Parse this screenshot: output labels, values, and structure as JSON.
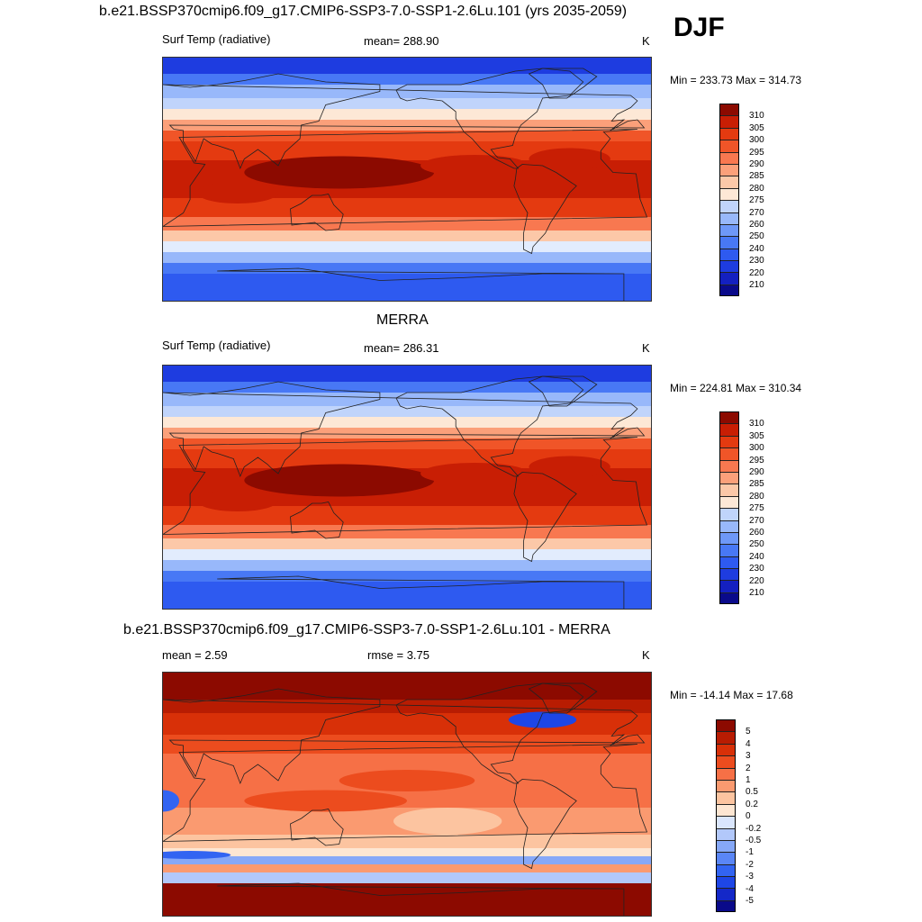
{
  "season": "DJF",
  "colors": {
    "temp": [
      "#0a0a8a",
      "#1420c0",
      "#1e3ce0",
      "#2e5af0",
      "#4878f5",
      "#6e98f8",
      "#98b8fa",
      "#c0d4fb",
      "#e2ecfd",
      "#fde8d6",
      "#fcc8a8",
      "#fba07a",
      "#f87850",
      "#f05528",
      "#e43a10",
      "#c81e04",
      "#8c0a00"
    ],
    "diff": [
      "#0a0a8a",
      "#1428c8",
      "#1e46e6",
      "#3264f2",
      "#5a86f6",
      "#86a8f8",
      "#b2c8fa",
      "#dae6fd",
      "#fde6d2",
      "#fcc4a0",
      "#fa9a70",
      "#f67046",
      "#ec4c1e",
      "#d83008",
      "#b81c02",
      "#8c0a00"
    ]
  },
  "panels": [
    {
      "title": "b.e21.BSSP370cmip6.f09_g17.CMIP6-SSP3-7.0-SSP1-2.6Lu.101 (yrs 2035-2059)",
      "left_label": "Surf Temp (radiative)",
      "center_label": "mean= 288.90",
      "units": "K",
      "minmax": "Min = 233.73 Max = 314.73",
      "colorbar_ticks": [
        "310",
        "305",
        "300",
        "295",
        "290",
        "285",
        "280",
        "275",
        "270",
        "260",
        "250",
        "240",
        "230",
        "220",
        "210"
      ]
    },
    {
      "title": "MERRA",
      "left_label": "Surf Temp (radiative)",
      "center_label": "mean= 286.31",
      "units": "K",
      "minmax": "Min = 224.81 Max = 310.34",
      "colorbar_ticks": [
        "310",
        "305",
        "300",
        "295",
        "290",
        "285",
        "280",
        "275",
        "270",
        "260",
        "250",
        "240",
        "230",
        "220",
        "210"
      ]
    },
    {
      "title": "b.e21.BSSP370cmip6.f09_g17.CMIP6-SSP3-7.0-SSP1-2.6Lu.101 - MERRA",
      "left_label": "mean =   2.59",
      "center_label": "rmse =   3.75",
      "units": "K",
      "minmax": "Min = -14.14 Max =  17.68",
      "colorbar_ticks": [
        "5",
        "4",
        "3",
        "2",
        "1",
        "0.5",
        "0.2",
        "0",
        "-0.2",
        "-0.5",
        "-1",
        "-2",
        "-3",
        "-4",
        "-5"
      ]
    }
  ],
  "chart_data": [
    {
      "type": "heatmap",
      "title": "b.e21.BSSP370cmip6.f09_g17.CMIP6-SSP3-7.0-SSP1-2.6Lu.101 (yrs 2035-2059)",
      "variable": "Surf Temp (radiative)",
      "units": "K",
      "mean": 288.9,
      "min": 233.73,
      "max": 314.73,
      "contour_levels": [
        210,
        220,
        230,
        240,
        250,
        260,
        270,
        275,
        280,
        285,
        290,
        295,
        300,
        305,
        310
      ]
    },
    {
      "type": "heatmap",
      "title": "MERRA",
      "variable": "Surf Temp (radiative)",
      "units": "K",
      "mean": 286.31,
      "min": 224.81,
      "max": 310.34,
      "contour_levels": [
        210,
        220,
        230,
        240,
        250,
        260,
        270,
        275,
        280,
        285,
        290,
        295,
        300,
        305,
        310
      ]
    },
    {
      "type": "heatmap",
      "title": "b.e21.BSSP370cmip6.f09_g17.CMIP6-SSP3-7.0-SSP1-2.6Lu.101 - MERRA",
      "units": "K",
      "mean": 2.59,
      "rmse": 3.75,
      "min": -14.14,
      "max": 17.68,
      "contour_levels": [
        -5,
        -4,
        -3,
        -2,
        -1,
        -0.5,
        -0.2,
        0,
        0.2,
        0.5,
        1,
        2,
        3,
        4,
        5
      ]
    }
  ]
}
